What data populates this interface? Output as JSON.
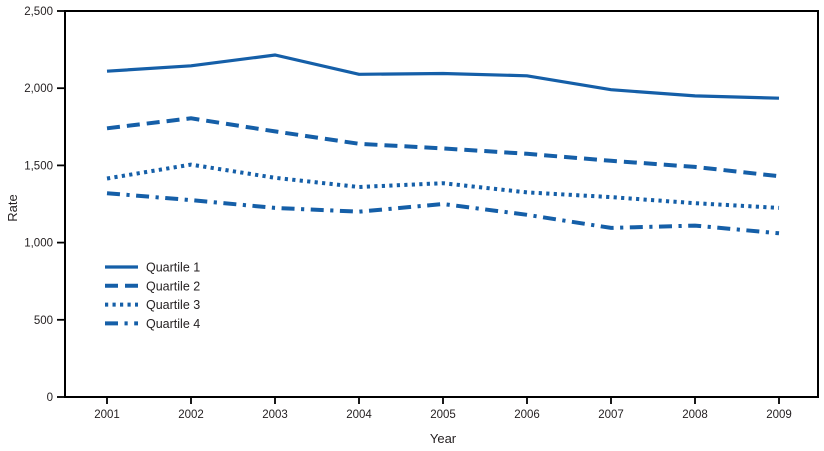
{
  "chart_data": {
    "type": "line",
    "title": "",
    "xlabel": "Year",
    "ylabel": "Rate",
    "x": [
      2001,
      2002,
      2003,
      2004,
      2005,
      2006,
      2007,
      2008,
      2009
    ],
    "ylim": [
      0,
      2500
    ],
    "yticks": [
      0,
      500,
      1000,
      1500,
      2000,
      2500
    ],
    "ytick_labels": [
      "0",
      "500",
      "1,000",
      "1,500",
      "2,000",
      "2,500"
    ],
    "grid": false,
    "legend_position": "inside-lower-left",
    "line_color": "#155FA8",
    "axis_color": "#000000",
    "text_color": "#231F20",
    "series": [
      {
        "name": "Quartile 1",
        "style": "solid",
        "values": [
          2110,
          2145,
          2215,
          2090,
          2095,
          2080,
          1990,
          1950,
          1935
        ]
      },
      {
        "name": "Quartile 2",
        "style": "dashed",
        "values": [
          1740,
          1805,
          1720,
          1640,
          1610,
          1575,
          1530,
          1490,
          1430
        ]
      },
      {
        "name": "Quartile 3",
        "style": "dotted",
        "values": [
          1415,
          1505,
          1420,
          1360,
          1385,
          1325,
          1295,
          1255,
          1225
        ]
      },
      {
        "name": "Quartile 4",
        "style": "dash-dot",
        "values": [
          1320,
          1275,
          1225,
          1200,
          1250,
          1180,
          1095,
          1110,
          1060
        ]
      }
    ]
  }
}
